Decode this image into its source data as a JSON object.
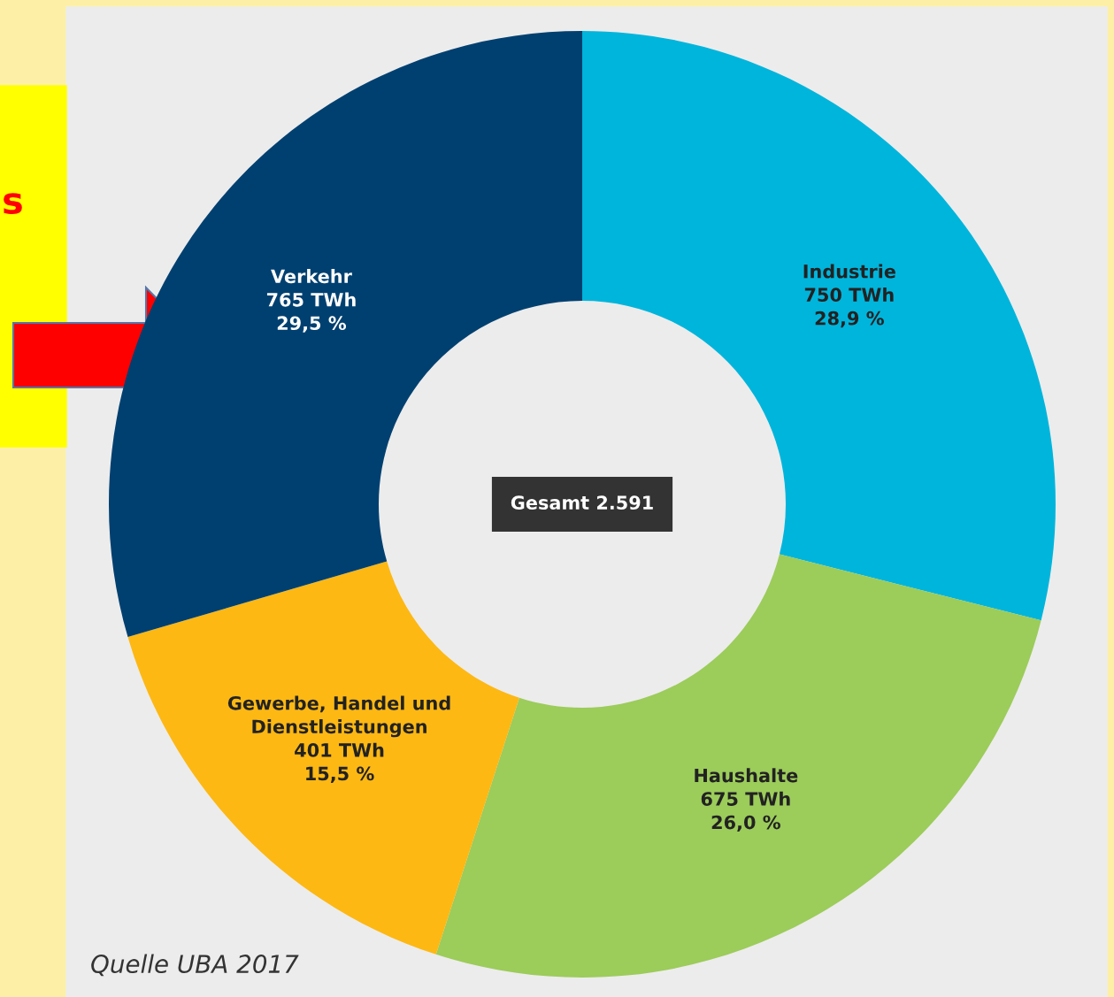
{
  "chart_data": {
    "type": "donut",
    "categories": [
      "Industrie",
      "Haushalte",
      "Gewerbe, Handel und\nDienstleistungen",
      "Verkehr"
    ],
    "values": [
      750,
      675,
      401,
      765
    ],
    "value_labels": [
      "750 TWh\n28,9 %",
      "675 TWh\n26,0 %",
      "401 TWh\n15,5 %",
      "765 TWh\n29,5 %"
    ],
    "colors": [
      "#00b5dc",
      "#9ccc5a",
      "#fdb813",
      "#004070"
    ],
    "annotations": [
      "Gesamt 2.591",
      "Quelle UBA 2017",
      "s"
    ],
    "legend": false
  }
}
